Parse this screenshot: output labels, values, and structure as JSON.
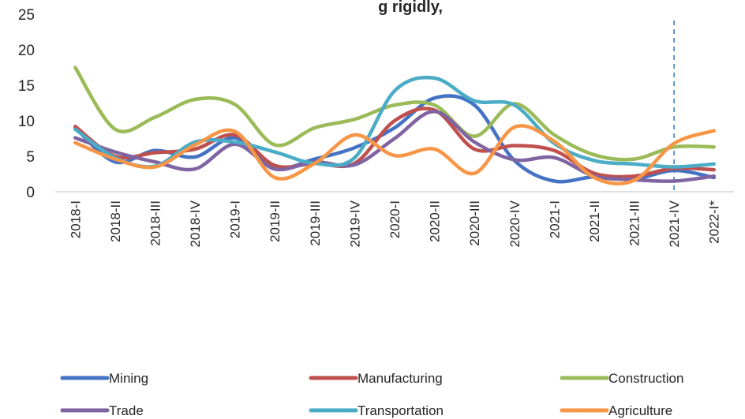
{
  "chart_data": {
    "type": "line",
    "title": "...g rigidly...",
    "title_partial": "g rigidly,",
    "xlabel": "",
    "ylabel": "",
    "ylim": [
      0,
      25
    ],
    "yticks": [
      0,
      5,
      10,
      15,
      20,
      25
    ],
    "categories": [
      "2018-I",
      "2018-II",
      "2018-III",
      "2018-IV",
      "2019-I",
      "2019-II",
      "2019-III",
      "2019-IV",
      "2020-I",
      "2020-II",
      "2020-III",
      "2020-IV",
      "2021-I",
      "2021-II",
      "2021-III",
      "2021-IV",
      "2022-I*"
    ],
    "grid": false,
    "legend_position": "bottom",
    "reference_line": {
      "category": "2021-IV",
      "style": "dashed"
    },
    "series": [
      {
        "name": "Mining",
        "color": "#4472C4",
        "values": [
          9.0,
          4.2,
          5.8,
          4.9,
          7.6,
          3.4,
          4.6,
          6.2,
          9.0,
          13.2,
          12.2,
          4.4,
          1.5,
          2.1,
          1.8,
          3.0,
          2.0
        ]
      },
      {
        "name": "Manufacturing",
        "color": "#C0504D",
        "values": [
          9.2,
          5.0,
          5.5,
          6.0,
          8.0,
          3.7,
          4.0,
          4.0,
          10.0,
          11.5,
          6.0,
          6.5,
          5.8,
          2.6,
          2.2,
          3.3,
          3.1
        ]
      },
      {
        "name": "Construction",
        "color": "#9BBB59",
        "values": [
          17.5,
          8.8,
          10.5,
          13.0,
          12.3,
          6.6,
          9.0,
          10.2,
          12.2,
          12.2,
          7.8,
          12.4,
          8.0,
          5.2,
          4.6,
          6.3,
          6.3
        ]
      },
      {
        "name": "Trade",
        "color": "#8064A2",
        "values": [
          7.6,
          5.6,
          4.2,
          3.2,
          6.7,
          3.2,
          4.2,
          3.8,
          7.5,
          11.3,
          7.0,
          4.5,
          4.8,
          2.2,
          1.7,
          1.5,
          2.2
        ]
      },
      {
        "name": "Transportation",
        "color": "#4BACC6",
        "values": [
          8.8,
          4.8,
          3.6,
          7.0,
          7.0,
          5.6,
          4.0,
          4.8,
          14.2,
          16.0,
          12.8,
          12.2,
          6.8,
          4.4,
          3.9,
          3.5,
          3.9
        ]
      },
      {
        "name": "Agriculture",
        "color": "#F79646",
        "values": [
          6.9,
          4.6,
          3.5,
          6.6,
          8.5,
          2.0,
          4.0,
          8.0,
          5.1,
          6.0,
          2.6,
          9.1,
          7.1,
          2.0,
          1.6,
          6.8,
          8.6
        ]
      }
    ]
  }
}
